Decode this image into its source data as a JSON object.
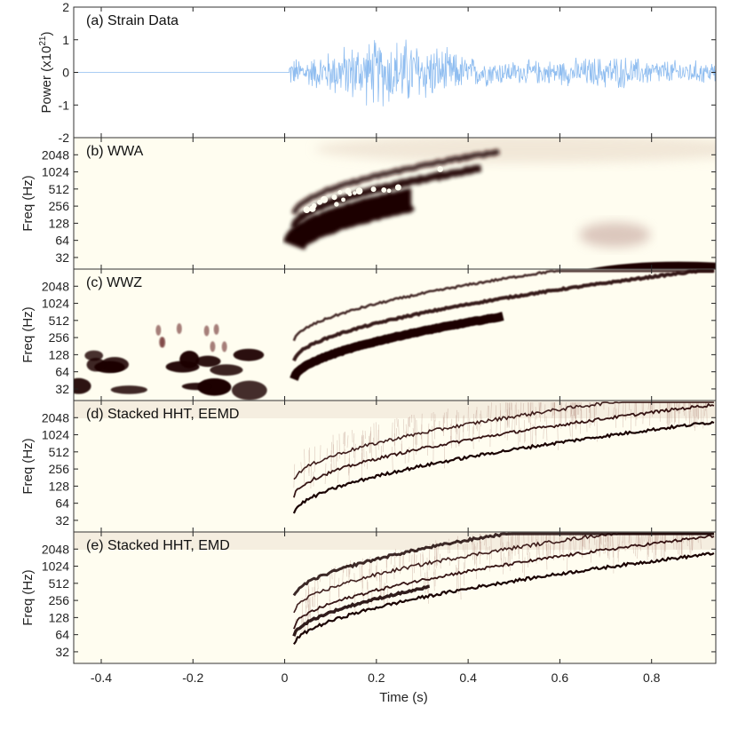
{
  "chart_data": [
    {
      "type": "line",
      "panel_label": "(a) Strain Data",
      "ylabel": "Power (x10",
      "ylabel_sup": "21",
      "ylabel_tail": ")",
      "yticks": [
        -2,
        -1,
        0,
        1,
        2
      ],
      "ylim": [
        -2,
        2
      ],
      "xlim": [
        -0.46,
        0.94
      ],
      "quiet_until_s": 0.01,
      "envelope": [
        {
          "t": 0.01,
          "amp": 0.5
        },
        {
          "t": 0.06,
          "amp": 0.55
        },
        {
          "t": 0.12,
          "amp": 0.9
        },
        {
          "t": 0.2,
          "amp": 1.2
        },
        {
          "t": 0.26,
          "amp": 1.25
        },
        {
          "t": 0.32,
          "amp": 1.0
        },
        {
          "t": 0.4,
          "amp": 0.55
        },
        {
          "t": 0.5,
          "amp": 0.4
        },
        {
          "t": 0.6,
          "amp": 0.45
        },
        {
          "t": 0.72,
          "amp": 0.6
        },
        {
          "t": 0.8,
          "amp": 0.45
        },
        {
          "t": 0.94,
          "amp": 0.4
        }
      ],
      "color": "#8fbdf0"
    },
    {
      "type": "heatmap",
      "panel_label": "(b) WWA",
      "ylabel": "Freq (Hz)",
      "yticks": [
        32,
        64,
        128,
        256,
        512,
        1024,
        2048
      ],
      "yscale": "log2",
      "ylim": [
        20,
        4096
      ],
      "xlim": [
        -0.46,
        0.94
      ],
      "colormap": [
        "#fffdf2",
        "#eadbc9",
        "#8a4a4a",
        "#2a0707",
        "#1a0303"
      ]
    },
    {
      "type": "heatmap",
      "panel_label": "(c) WWZ",
      "ylabel": "Freq (Hz)",
      "yticks": [
        32,
        64,
        128,
        256,
        512,
        1024,
        2048
      ],
      "yscale": "log2",
      "ylim": [
        20,
        4096
      ],
      "xlim": [
        -0.46,
        0.94
      ]
    },
    {
      "type": "heatmap",
      "panel_label": "(d) Stacked HHT, EEMD",
      "ylabel": "Freq (Hz)",
      "yticks": [
        32,
        64,
        128,
        256,
        512,
        1024,
        2048
      ],
      "yscale": "log2",
      "ylim": [
        20,
        4096
      ],
      "xlim": [
        -0.46,
        0.94
      ]
    },
    {
      "type": "heatmap",
      "panel_label": "(e) Stacked HHT, EMD",
      "ylabel": "Freq (Hz)",
      "yticks": [
        32,
        64,
        128,
        256,
        512,
        1024,
        2048
      ],
      "yscale": "log2",
      "ylim": [
        20,
        4096
      ],
      "xlim": [
        -0.46,
        0.94
      ],
      "xlabel": "Time (s)",
      "xticks": [
        -0.4,
        -0.2,
        0,
        0.2,
        0.4,
        0.6,
        0.8
      ],
      "xticklabels": [
        "-0.4",
        "-0.2",
        "0",
        "0.2",
        "0.4",
        "0.6",
        "0.8"
      ]
    }
  ]
}
